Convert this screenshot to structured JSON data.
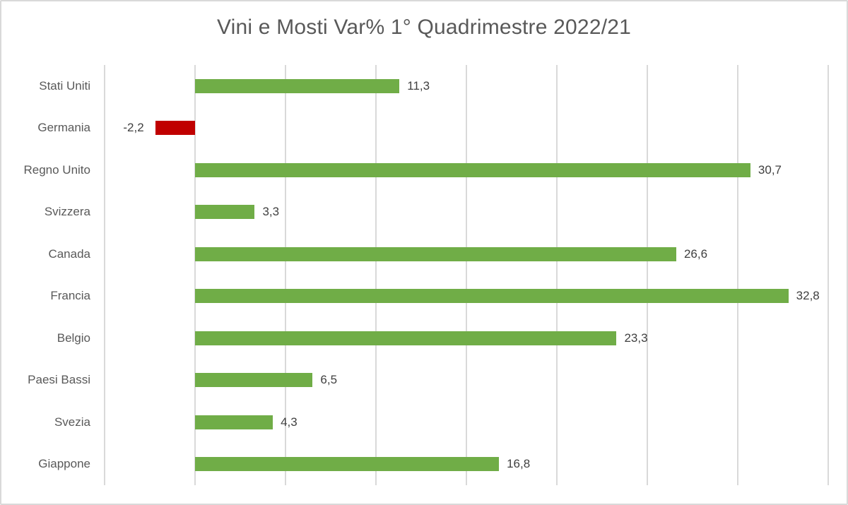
{
  "title": "Vini e Mosti Var% 1° Quadrimestre 2022/21",
  "colors": {
    "positive": "#70ad47",
    "negative": "#c00000",
    "grid": "#d9d9d9",
    "text": "#595959"
  },
  "chart_data": {
    "type": "bar",
    "orientation": "horizontal",
    "title": "Vini e Mosti Var% 1° Quadrimestre 2022/21",
    "xlabel": "",
    "ylabel": "",
    "categories": [
      "Stati Uniti",
      "Germania",
      "Regno Unito",
      "Svizzera",
      "Canada",
      "Francia",
      "Belgio",
      "Paesi Bassi",
      "Svezia",
      "Giappone"
    ],
    "values": [
      11.3,
      -2.2,
      30.7,
      3.3,
      26.6,
      32.8,
      23.3,
      6.5,
      4.3,
      16.8
    ],
    "value_labels": [
      "11,3",
      "-2,2",
      "30,7",
      "3,3",
      "26,6",
      "32,8",
      "23,3",
      "6,5",
      "4,3",
      "16,8"
    ],
    "xlim": [
      -5,
      35
    ],
    "grid_step": 5,
    "grid": true,
    "tick_labels_shown": false,
    "legend": null
  }
}
